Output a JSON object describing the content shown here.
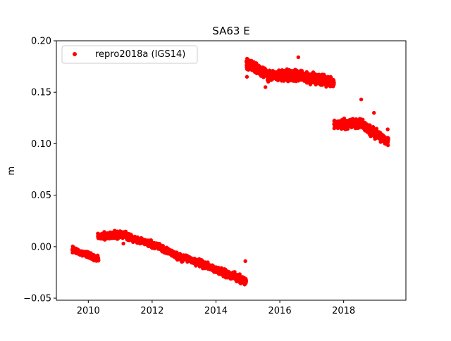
{
  "chart_data": {
    "type": "scatter",
    "title": "SA63 E",
    "xlabel": "",
    "ylabel": "m",
    "xlim": [
      2009.0,
      2019.95
    ],
    "ylim": [
      -0.052,
      0.2
    ],
    "xticks": [
      2010,
      2012,
      2014,
      2016,
      2018
    ],
    "xtick_labels": [
      "2010",
      "2012",
      "2014",
      "2016",
      "2018"
    ],
    "yticks": [
      -0.05,
      0.0,
      0.05,
      0.1,
      0.15,
      0.2
    ],
    "ytick_labels": [
      "−0.05",
      "0.00",
      "0.05",
      "0.10",
      "0.15",
      "0.20"
    ],
    "grid": false,
    "legend": {
      "position": "top-left",
      "entries": [
        "repro2018a (IGS14)"
      ]
    },
    "series": [
      {
        "name": "repro2018a (IGS14)",
        "color": "#ff0000",
        "marker": "circle",
        "segments": [
          {
            "x_start": 2009.5,
            "x_end": 2010.32,
            "y_start": -0.003,
            "y_end": -0.012,
            "noise": 0.0025
          },
          {
            "x_start": 2010.3,
            "x_end": 2011.2,
            "y_start": 0.01,
            "y_end": 0.012,
            "noise": 0.003
          },
          {
            "x_start": 2011.2,
            "x_end": 2012.2,
            "y_start": 0.01,
            "y_end": 0.0,
            "noise": 0.003
          },
          {
            "x_start": 2012.2,
            "x_end": 2013.0,
            "y_start": 0.0,
            "y_end": -0.012,
            "noise": 0.003
          },
          {
            "x_start": 2013.0,
            "x_end": 2014.0,
            "y_start": -0.01,
            "y_end": -0.022,
            "noise": 0.003
          },
          {
            "x_start": 2014.0,
            "x_end": 2014.95,
            "y_start": -0.022,
            "y_end": -0.034,
            "noise": 0.0035
          },
          {
            "x_start": 2014.95,
            "x_end": 2015.6,
            "y_start": 0.178,
            "y_end": 0.168,
            "noise": 0.0045
          },
          {
            "x_start": 2015.6,
            "x_end": 2016.6,
            "y_start": 0.167,
            "y_end": 0.166,
            "noise": 0.005
          },
          {
            "x_start": 2016.6,
            "x_end": 2017.7,
            "y_start": 0.166,
            "y_end": 0.16,
            "noise": 0.005
          },
          {
            "x_start": 2017.7,
            "x_end": 2018.6,
            "y_start": 0.118,
            "y_end": 0.12,
            "noise": 0.0045
          },
          {
            "x_start": 2018.6,
            "x_end": 2019.4,
            "y_start": 0.118,
            "y_end": 0.102,
            "noise": 0.0045
          }
        ],
        "outliers": [
          {
            "x": 2014.92,
            "y": -0.014
          },
          {
            "x": 2011.1,
            "y": 0.003
          },
          {
            "x": 2016.58,
            "y": 0.184
          },
          {
            "x": 2018.55,
            "y": 0.143
          },
          {
            "x": 2015.55,
            "y": 0.155
          },
          {
            "x": 2014.97,
            "y": 0.165
          },
          {
            "x": 2018.95,
            "y": 0.13
          },
          {
            "x": 2019.38,
            "y": 0.114
          }
        ]
      }
    ]
  }
}
